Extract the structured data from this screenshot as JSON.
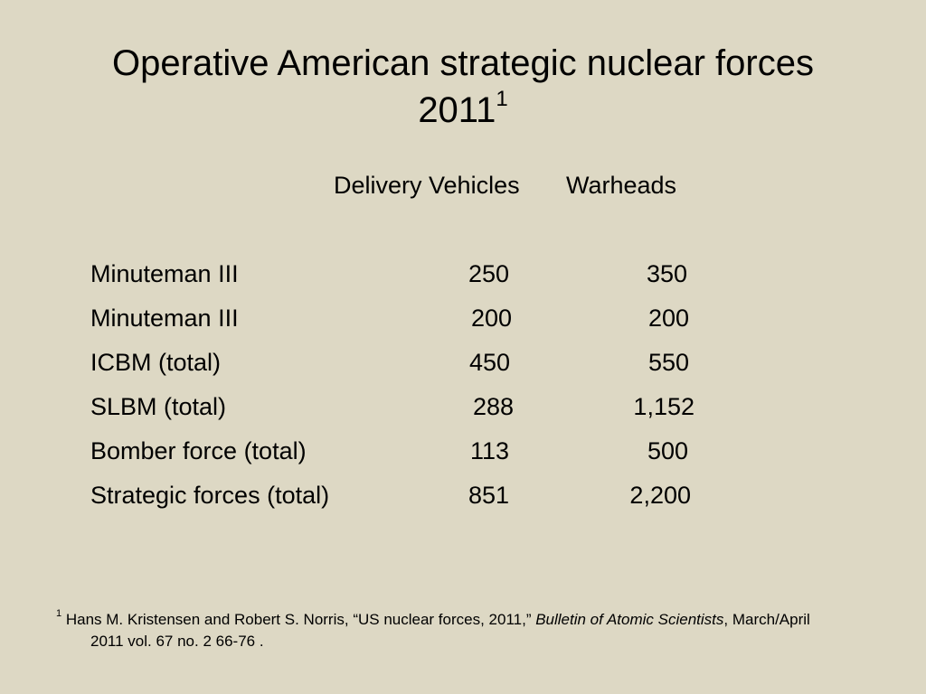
{
  "title": {
    "line1": "Operative American strategic nuclear forces",
    "line2": "2011",
    "superscript": "1"
  },
  "table": {
    "headers": {
      "delivery": "Delivery Vehicles",
      "warheads": "Warheads"
    },
    "rows": [
      {
        "label": "Minuteman III",
        "delivery": "250",
        "warheads": "350"
      },
      {
        "label": "Minuteman III",
        "delivery": "200",
        "warheads": "200"
      },
      {
        "label": "ICBM (total)",
        "delivery": "450",
        "warheads": "550"
      },
      {
        "label": "SLBM (total)",
        "delivery": "288",
        "warheads": "1,152"
      },
      {
        "label": "Bomber force (total)",
        "delivery": "113",
        "warheads": "500"
      },
      {
        "label": "Strategic forces (total)",
        "delivery": "851",
        "warheads": "2,200"
      }
    ]
  },
  "footnote": {
    "marker": "1",
    "text_before": "Hans M. Kristensen and Robert S. Norris, “US nuclear forces, 2011,” ",
    "journal": "Bulletin of Atomic Scientists",
    "text_after": ", March/April",
    "line2": "2011 vol. 67 no. 2 66-76 ."
  }
}
